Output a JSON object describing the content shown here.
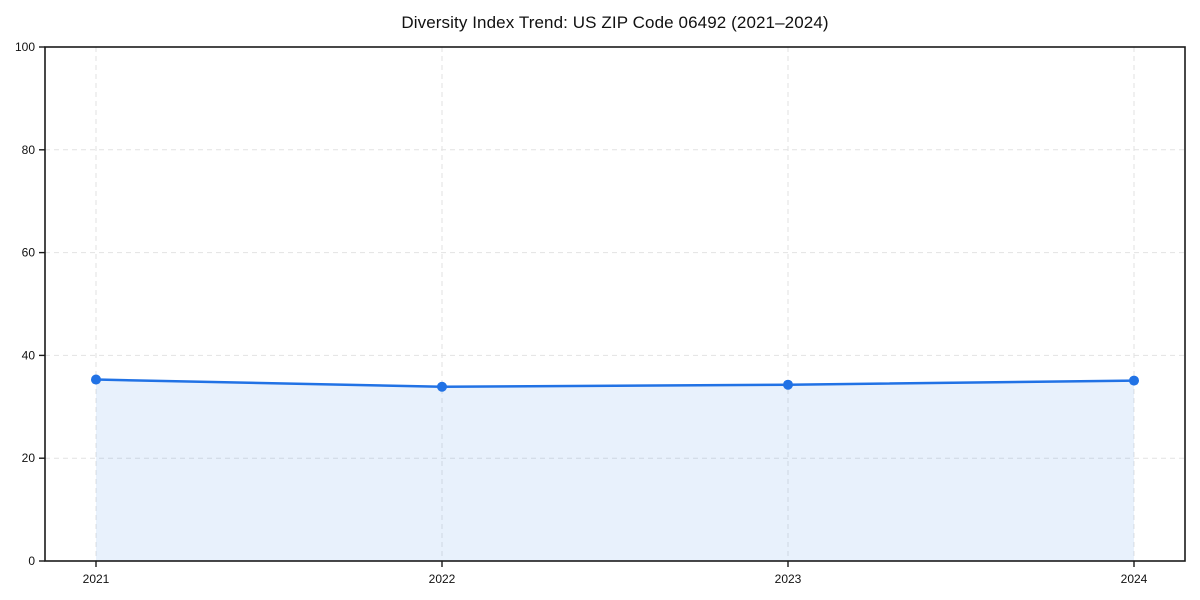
{
  "title": "Diversity Index Trend: US ZIP Code 06492 (2021–2024)",
  "chart_data": {
    "type": "area",
    "title": "Diversity Index Trend: US ZIP Code 06492 (2021–2024)",
    "categories": [
      "2021",
      "2022",
      "2023",
      "2024"
    ],
    "series": [
      {
        "name": "Diversity Index",
        "values": [
          35.3,
          33.9,
          34.3,
          35.1
        ]
      }
    ],
    "xlabel": "",
    "ylabel": "",
    "ylim": [
      0,
      100
    ],
    "yticks": [
      0,
      20,
      40,
      60,
      80,
      100
    ],
    "grid": true,
    "grid_style": "dashed",
    "legend_position": "none",
    "line_color": "#2172e5",
    "marker": "circle",
    "fill_below_line": true,
    "grid_color": "#e2e2e2",
    "axis_color": "#1a1a1a",
    "background_color": "#ffffff"
  }
}
